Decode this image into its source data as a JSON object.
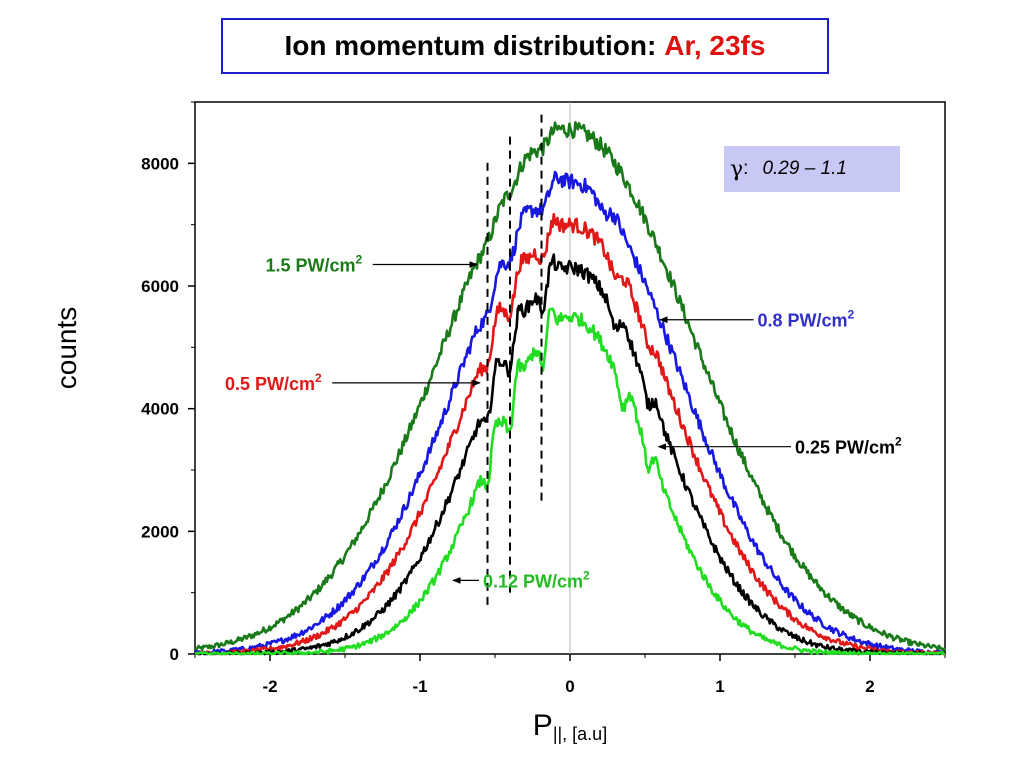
{
  "title": {
    "main": "Ion momentum distribution:",
    "highlight": "Ar, 23fs",
    "highlight_color": "#e01010",
    "border_color": "#1e1ec8"
  },
  "gamma_box": {
    "symbol": "γ",
    "separator": ":",
    "range": "0.29 – 1.1",
    "background": "#c8c8f4"
  },
  "chart_data": {
    "type": "line",
    "xlabel_main": "P",
    "xlabel_sub": "||, [a.u]",
    "ylabel": "counts",
    "xlim": [
      -2.5,
      2.5
    ],
    "ylim": [
      0,
      9000
    ],
    "x_ticks": [
      -2,
      -1,
      0,
      1,
      2
    ],
    "y_ticks": [
      0,
      2000,
      4000,
      6000,
      8000
    ],
    "vertical_reference_line_x": 0,
    "series": [
      {
        "name": "1.5 PW/cm2",
        "label_text": "1.5 PW/cm",
        "color": "#1a7a1a",
        "sigma": 0.82,
        "peak": 8550,
        "ripples": [
          [
            -0.55,
            0.07,
            150
          ],
          [
            -0.4,
            0.06,
            130
          ],
          [
            -0.18,
            0.05,
            100
          ]
        ]
      },
      {
        "name": "0.8 PW/cm2",
        "label_text": "0.8 PW/cm",
        "color": "#1818e0",
        "sigma": 0.72,
        "peak": 7700,
        "ripples": [
          [
            -0.55,
            0.05,
            300
          ],
          [
            -0.4,
            0.05,
            250
          ],
          [
            -0.18,
            0.05,
            220
          ],
          [
            0.22,
            0.05,
            150
          ]
        ]
      },
      {
        "name": "0.5 PW/cm2",
        "label_text": "0.5 PW/cm",
        "color": "#e01818",
        "sigma": 0.67,
        "peak": 7000,
        "ripples": [
          [
            -0.55,
            0.04,
            420
          ],
          [
            -0.4,
            0.04,
            380
          ],
          [
            -0.18,
            0.04,
            320
          ],
          [
            0.3,
            0.05,
            200
          ],
          [
            0.52,
            0.04,
            180
          ]
        ]
      },
      {
        "name": "0.25 PW/cm2",
        "label_text": "0.25 PW/cm",
        "color": "#000000",
        "sigma": 0.6,
        "peak": 6300,
        "ripples": [
          [
            -0.55,
            0.035,
            550
          ],
          [
            -0.4,
            0.035,
            500
          ],
          [
            -0.18,
            0.035,
            420
          ],
          [
            0.3,
            0.04,
            300
          ],
          [
            0.52,
            0.035,
            380
          ]
        ]
      },
      {
        "name": "0.12 PW/cm2",
        "label_text": "0.12 PW/cm",
        "color": "#22dd22",
        "sigma": 0.52,
        "peak": 5500,
        "ripples": [
          [
            -0.55,
            0.03,
            700
          ],
          [
            -0.4,
            0.03,
            650
          ],
          [
            -0.18,
            0.03,
            550
          ],
          [
            0.35,
            0.035,
            450
          ],
          [
            0.52,
            0.03,
            500
          ]
        ]
      }
    ],
    "dashed_lines": [
      {
        "x": -0.55,
        "y_range": [
          800,
          8100
        ]
      },
      {
        "x": -0.4,
        "y_range": [
          1000,
          8500
        ]
      },
      {
        "x": -0.19,
        "y_range": [
          2500,
          8800
        ]
      }
    ],
    "annotations": [
      {
        "series_index": 0,
        "text": "1.5 PW/cm",
        "sup": "2",
        "color": "#1a7a1a",
        "text_x": -2.03,
        "text_y": 6350,
        "arrow_x": -0.62,
        "arrow_y": 6350
      },
      {
        "series_index": 1,
        "text": "0.8 PW/cm",
        "sup": "2",
        "color": "#3030c8",
        "text_x": 1.25,
        "text_y": 5450,
        "arrow_x": 0.6,
        "arrow_y": 5450
      },
      {
        "series_index": 2,
        "text": "0.5 PW/cm",
        "sup": "2",
        "color": "#e01818",
        "text_x": -2.3,
        "text_y": 4420,
        "arrow_x": -0.6,
        "arrow_y": 4420
      },
      {
        "series_index": 3,
        "text": "0.25 PW/cm",
        "sup": "2",
        "color": "#000000",
        "text_x": 1.5,
        "text_y": 3380,
        "arrow_x": 0.59,
        "arrow_y": 3380
      },
      {
        "series_index": 4,
        "text": "0.12 PW/cm",
        "sup": "2",
        "color": "#22bb22",
        "text_x": -0.58,
        "text_y": 1200,
        "arrow_x": -0.78,
        "arrow_y": 1200
      }
    ]
  }
}
